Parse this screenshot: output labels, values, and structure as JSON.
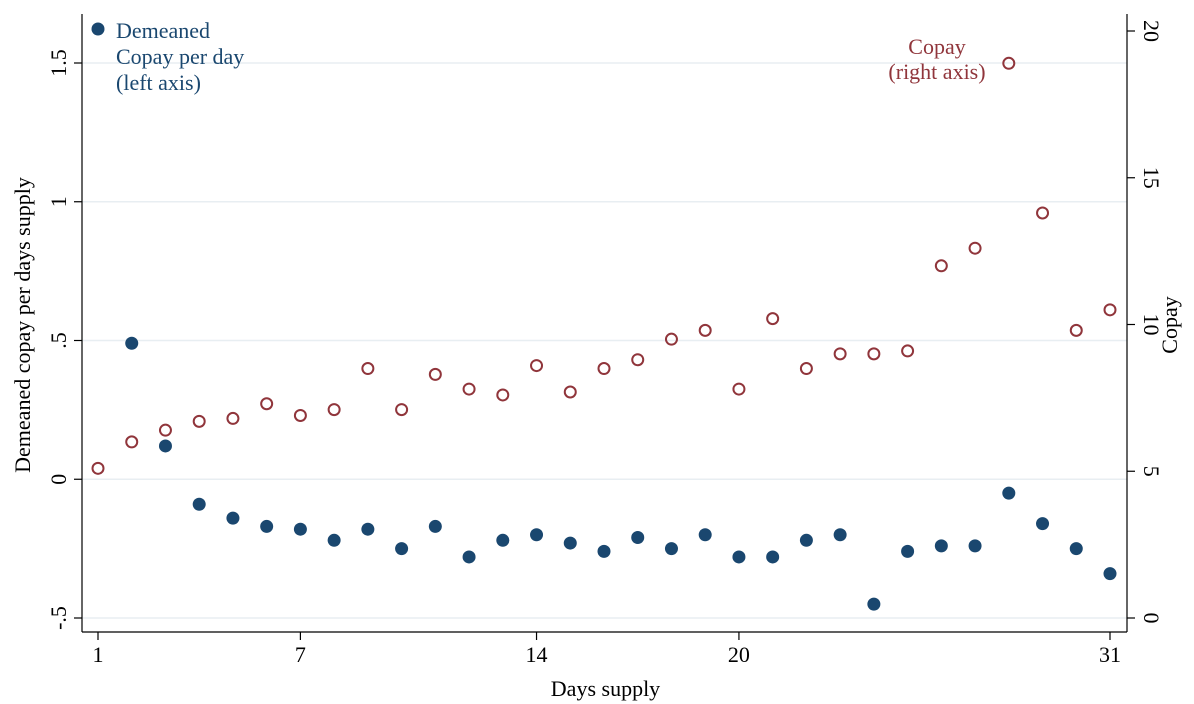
{
  "chart_data": {
    "type": "scatter",
    "title": "",
    "xlabel": "Days supply",
    "ylabel_left": "Demeaned copay per days supply",
    "ylabel_right": "Copay",
    "x_ticks": [
      1,
      7,
      14,
      20,
      31
    ],
    "y_left_ticks": [
      -0.5,
      0,
      0.5,
      1,
      1.5
    ],
    "y_left_tick_labels": [
      "-.5",
      "0",
      ".5",
      "1",
      "1.5"
    ],
    "y_right_ticks": [
      0,
      5,
      10,
      15,
      20
    ],
    "y_right_tick_labels": [
      "0",
      "5",
      "10",
      "15",
      "20"
    ],
    "xlim": [
      1,
      31
    ],
    "y_left_lim": [
      -0.5,
      1.5
    ],
    "y_right_lim": [
      0,
      20
    ],
    "grid": true,
    "series": [
      {
        "name": "Demeaned Copay per day (left axis)",
        "axis": "left",
        "marker": "filled-circle",
        "color": "#1a476f",
        "x": [
          2,
          3,
          4,
          5,
          6,
          7,
          8,
          9,
          10,
          11,
          12,
          13,
          14,
          15,
          16,
          17,
          18,
          19,
          20,
          21,
          22,
          23,
          24,
          25,
          26,
          27,
          28,
          29,
          30,
          31
        ],
        "y": [
          0.49,
          0.12,
          -0.09,
          -0.14,
          -0.17,
          -0.18,
          -0.22,
          -0.18,
          -0.25,
          -0.17,
          -0.28,
          -0.22,
          -0.2,
          -0.23,
          -0.26,
          -0.21,
          -0.25,
          -0.2,
          -0.28,
          -0.28,
          -0.22,
          -0.2,
          -0.45,
          -0.26,
          -0.24,
          -0.24,
          -0.05,
          -0.16,
          -0.25,
          -0.34
        ]
      },
      {
        "name": "Copay (right axis)",
        "axis": "right",
        "marker": "hollow-circle",
        "color": "#90353b",
        "x": [
          1,
          2,
          3,
          4,
          5,
          6,
          7,
          8,
          9,
          10,
          11,
          12,
          13,
          14,
          15,
          16,
          17,
          18,
          19,
          20,
          21,
          22,
          23,
          24,
          25,
          26,
          27,
          28,
          29,
          30,
          31
        ],
        "y": [
          5.1,
          6,
          6.4,
          6.7,
          6.8,
          7.3,
          6.9,
          7.1,
          8.5,
          7.1,
          8.3,
          7.8,
          7.6,
          8.6,
          7.7,
          8.5,
          8.8,
          9.5,
          9.8,
          7.8,
          10.2,
          8.5,
          9,
          9,
          9.1,
          12,
          12.6,
          18.9,
          13.8,
          9.8,
          10.5
        ]
      }
    ],
    "annotations": [
      {
        "text": [
          "Demeaned",
          "Copay per day",
          "(left axis)"
        ],
        "color": "#1a476f",
        "marker": "filled-circle",
        "placement": "top-left"
      },
      {
        "text": [
          "Copay",
          "(right axis)"
        ],
        "color": "#90353b",
        "marker": "none",
        "placement": "top-right"
      }
    ],
    "legend": "none"
  }
}
